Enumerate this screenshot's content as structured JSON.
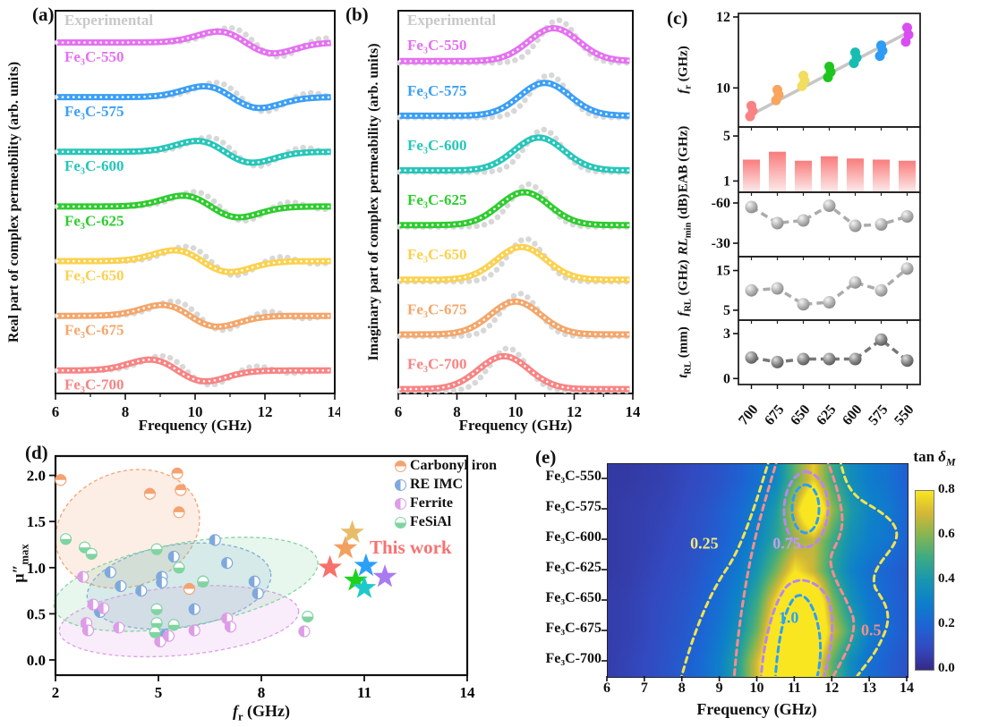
{
  "figure": {
    "panel_labels": {
      "a": "(a)",
      "b": "(b)",
      "c": "(c)",
      "d": "(d)",
      "e": "(e)"
    }
  },
  "chart_data": [
    {
      "id": "a",
      "type": "line",
      "ylabel": "Real part of complex permeability (arb. units)",
      "xlabel": "Frequency (GHz)",
      "xlim": [
        6,
        14
      ],
      "x_ticks": [
        6,
        8,
        10,
        12,
        14
      ],
      "x_minor_ticks": [
        7,
        9,
        11,
        13
      ],
      "experimental_label": "Experimental",
      "experimental_color": "#d8d8d8",
      "samples": [
        {
          "label": "Fe₃C-550",
          "color": "#e570f2",
          "fr": 11.45
        },
        {
          "label": "Fe₃C-575",
          "color": "#3b9ff5",
          "fr": 11.05
        },
        {
          "label": "Fe₃C-600",
          "color": "#26c6b9",
          "fr": 10.85
        },
        {
          "label": "Fe₃C-625",
          "color": "#2ecc2e",
          "fr": 10.45
        },
        {
          "label": "Fe₃C-650",
          "color": "#fbd14e",
          "fr": 10.2
        },
        {
          "label": "Fe₃C-675",
          "color": "#f4a66b",
          "fr": 9.85
        },
        {
          "label": "Fe₃C-700",
          "color": "#f98383",
          "fr": 9.5
        }
      ]
    },
    {
      "id": "b",
      "type": "line",
      "ylabel": "Imaginary part of complex permeability (arb. units)",
      "xlabel": "Frequency (GHz)",
      "xlim": [
        6,
        14
      ],
      "x_ticks": [
        6,
        8,
        10,
        12,
        14
      ],
      "x_minor_ticks": [
        7,
        9,
        11,
        13
      ],
      "experimental_label": "Experimental",
      "experimental_color": "#d8d8d8",
      "samples": [
        {
          "label": "Fe₃C-550",
          "color": "#e570f2",
          "fr": 11.3
        },
        {
          "label": "Fe₃C-575",
          "color": "#3b9ff5",
          "fr": 11.0
        },
        {
          "label": "Fe₃C-600",
          "color": "#26c6b9",
          "fr": 10.8
        },
        {
          "label": "Fe₃C-625",
          "color": "#2ecc2e",
          "fr": 10.3
        },
        {
          "label": "Fe₃C-650",
          "color": "#fbd14e",
          "fr": 10.2
        },
        {
          "label": "Fe₃C-675",
          "color": "#f4a66b",
          "fr": 10.0
        },
        {
          "label": "Fe₃C-700",
          "color": "#f98383",
          "fr": 9.6
        }
      ]
    },
    {
      "id": "c",
      "type": "multi-panel",
      "categories": [
        "700",
        "675",
        "650",
        "625",
        "600",
        "575",
        "550"
      ],
      "category_colors": [
        "#f98383",
        "#f9a55f",
        "#f2dd5e",
        "#1dc51d",
        "#17bdb1",
        "#2d9cf4",
        "#d94ef0"
      ],
      "trend_color": "#c6c6c6",
      "subpanels": [
        {
          "key": "fr",
          "label_parts": {
            "it": "f",
            "sub": "r",
            "post": " (GHz)"
          },
          "ticks": [
            12,
            10
          ],
          "ylim": [
            8.9,
            12.1
          ],
          "type": "scatter-cluster",
          "values": [
            [
              9.2,
              9.35,
              9.5
            ],
            [
              9.65,
              9.8,
              9.95
            ],
            [
              10.05,
              10.2,
              10.35
            ],
            [
              10.3,
              10.45,
              10.6
            ],
            [
              10.7,
              10.85,
              11.0
            ],
            [
              10.9,
              11.05,
              11.2
            ],
            [
              11.3,
              11.5,
              11.7
            ]
          ],
          "trend_line": [
            9.25,
            11.55
          ]
        },
        {
          "key": "eab",
          "label_parts": {
            "pre": "EAB",
            "post": " (GHz)"
          },
          "ticks": [
            5,
            1
          ],
          "ylim": [
            0,
            5.8
          ],
          "type": "bar",
          "bar_color": "#f97c7c",
          "values": [
            2.9,
            3.6,
            2.8,
            3.2,
            3.0,
            2.9,
            2.8
          ]
        },
        {
          "key": "rl_min",
          "label_parts": {
            "it": "RL",
            "sub": "min",
            "post": " (dB)"
          },
          "ticks": [
            -60,
            -30
          ],
          "ylim": [
            -68,
            -20
          ],
          "inverted": true,
          "type": "line-marker",
          "values": [
            -57,
            -45,
            -47,
            -58,
            -43,
            -44,
            -50
          ]
        },
        {
          "key": "f_rl",
          "label_parts": {
            "it": "f",
            "sub": "RL",
            "post": " (GHz)"
          },
          "ticks": [
            15,
            5
          ],
          "ylim": [
            2.5,
            18.5
          ],
          "type": "line-marker",
          "values": [
            10,
            10.5,
            6.5,
            7,
            12,
            10,
            15.5
          ]
        },
        {
          "key": "t_rl",
          "label_parts": {
            "it": "t",
            "sub": "RL",
            "post": " (mm)"
          },
          "ticks": [
            3,
            0
          ],
          "ylim": [
            -0.4,
            3.9
          ],
          "type": "line-marker",
          "dark": true,
          "values": [
            1.4,
            1.1,
            1.3,
            1.3,
            1.3,
            2.6,
            1.2
          ]
        }
      ]
    },
    {
      "id": "d",
      "type": "scatter",
      "xlabel_parts": {
        "it": "f",
        "sub": "r",
        "post": " (GHz)"
      },
      "ylabel_parts": {
        "pre": "μ″",
        "sub": "max"
      },
      "xlim": [
        2,
        14
      ],
      "x_ticks": [
        2,
        5,
        8,
        11,
        14
      ],
      "ylim": [
        0,
        2.25
      ],
      "y_ticks": [
        0.0,
        0.5,
        1.0,
        1.5,
        2.0
      ],
      "groups": [
        {
          "name": "Carbonyl iron",
          "color": "#f5a271",
          "fill_side": "top",
          "region": {
            "cf": 4.1,
            "cmu": 1.42,
            "rf": 2.15,
            "rmu": 0.62,
            "rot": -20
          },
          "points": [
            [
              2.15,
              1.95
            ],
            [
              4.75,
              1.8
            ],
            [
              5.55,
              2.02
            ],
            [
              5.65,
              1.84
            ],
            [
              5.6,
              1.6
            ],
            [
              5.9,
              0.77
            ]
          ]
        },
        {
          "name": "RE IMC",
          "color": "#7fa8dc",
          "fill_side": "left",
          "region": {
            "cf": 5.6,
            "cmu": 0.8,
            "rf": 2.7,
            "rmu": 0.45,
            "rot": -8
          },
          "points": [
            [
              3.6,
              0.95
            ],
            [
              3.9,
              0.8
            ],
            [
              4.5,
              0.75
            ],
            [
              5.1,
              0.9
            ],
            [
              5.1,
              0.84
            ],
            [
              5.45,
              1.12
            ],
            [
              6.05,
              0.55
            ],
            [
              6.3,
              0.85
            ],
            [
              6.65,
              1.3
            ],
            [
              7.0,
              1.05
            ],
            [
              7.8,
              0.85
            ],
            [
              7.9,
              0.72
            ],
            [
              5.2,
              0.27
            ],
            [
              3.3,
              0.52
            ]
          ]
        },
        {
          "name": "Ferrite",
          "color": "#dd9ce8",
          "fill_side": "left",
          "region": {
            "cf": 5.6,
            "cmu": 0.42,
            "rf": 3.5,
            "rmu": 0.37,
            "rot": -5
          },
          "points": [
            [
              2.8,
              0.9
            ],
            [
              2.9,
              0.4
            ],
            [
              2.95,
              0.32
            ],
            [
              3.1,
              0.6
            ],
            [
              3.4,
              0.56
            ],
            [
              3.85,
              0.35
            ],
            [
              5.05,
              0.2
            ],
            [
              5.3,
              0.26
            ],
            [
              6.05,
              0.32
            ],
            [
              7.0,
              0.45
            ],
            [
              7.1,
              0.36
            ],
            [
              9.25,
              0.31
            ]
          ]
        },
        {
          "name": "FeSiAl",
          "color": "#7fd4a0",
          "fill_side": "bottom",
          "region": {
            "cf": 5.8,
            "cmu": 0.82,
            "rf": 3.9,
            "rmu": 0.45,
            "rot": -10
          },
          "points": [
            [
              2.3,
              1.31
            ],
            [
              2.85,
              1.22
            ],
            [
              3.05,
              1.15
            ],
            [
              4.95,
              1.2
            ],
            [
              5.6,
              1.0
            ],
            [
              6.3,
              0.85
            ],
            [
              4.95,
              0.55
            ],
            [
              4.95,
              0.4
            ],
            [
              4.9,
              0.3
            ],
            [
              5.45,
              0.38
            ],
            [
              9.35,
              0.47
            ]
          ]
        }
      ],
      "this_work": {
        "label": "This work",
        "color": "#f87171",
        "stars": [
          {
            "f": 10.0,
            "mu": 1.0,
            "color": "#f8706a"
          },
          {
            "f": 10.45,
            "mu": 1.21,
            "color": "#f2a05f"
          },
          {
            "f": 10.65,
            "mu": 1.38,
            "color": "#e8bd6a"
          },
          {
            "f": 10.75,
            "mu": 0.86,
            "color": "#1ed11e"
          },
          {
            "f": 11.0,
            "mu": 0.78,
            "color": "#1fc9c9"
          },
          {
            "f": 11.05,
            "mu": 1.02,
            "color": "#2ba0f8"
          },
          {
            "f": 11.6,
            "mu": 0.9,
            "color": "#a97af2"
          }
        ]
      }
    },
    {
      "id": "e",
      "type": "heatmap",
      "title_parts": {
        "pre": "tan ",
        "it": "δ",
        "sub": "M"
      },
      "xlabel": "Frequency (GHz)",
      "f_start": 6,
      "f_step": 0.5,
      "x_ticks": [
        6,
        7,
        8,
        9,
        10,
        11,
        12,
        13,
        14
      ],
      "rows": [
        "Fe₃C-550",
        "Fe₃C-575",
        "Fe₃C-600",
        "Fe₃C-625",
        "Fe₃C-650",
        "Fe₃C-675",
        "Fe₃C-700"
      ],
      "values": [
        [
          0.05,
          0.05,
          0.06,
          0.07,
          0.09,
          0.11,
          0.14,
          0.18,
          0.24,
          0.33,
          0.55,
          0.75,
          0.5,
          0.36,
          0.29,
          0.25,
          0.18
        ],
        [
          0.05,
          0.06,
          0.07,
          0.08,
          0.1,
          0.13,
          0.17,
          0.22,
          0.3,
          0.42,
          0.7,
          1.05,
          0.62,
          0.42,
          0.32,
          0.28,
          0.2
        ],
        [
          0.05,
          0.06,
          0.07,
          0.09,
          0.11,
          0.14,
          0.18,
          0.24,
          0.33,
          0.46,
          0.62,
          0.68,
          0.5,
          0.37,
          0.3,
          0.26,
          0.19
        ],
        [
          0.05,
          0.06,
          0.08,
          0.1,
          0.12,
          0.16,
          0.21,
          0.28,
          0.4,
          0.58,
          0.8,
          0.68,
          0.46,
          0.32,
          0.24,
          0.2,
          0.15
        ],
        [
          0.06,
          0.07,
          0.09,
          0.11,
          0.14,
          0.18,
          0.24,
          0.33,
          0.5,
          0.78,
          1.08,
          1.0,
          0.6,
          0.38,
          0.27,
          0.21,
          0.16
        ],
        [
          0.06,
          0.07,
          0.09,
          0.12,
          0.15,
          0.2,
          0.27,
          0.38,
          0.58,
          0.9,
          1.2,
          1.05,
          0.7,
          0.48,
          0.3,
          0.22,
          0.16
        ],
        [
          0.06,
          0.08,
          0.1,
          0.13,
          0.17,
          0.22,
          0.31,
          0.46,
          0.72,
          1.02,
          1.1,
          0.85,
          0.55,
          0.35,
          0.24,
          0.18,
          0.13
        ]
      ],
      "colorbar": {
        "ticks": [
          0.8,
          0.6,
          0.4,
          0.2,
          0.0
        ],
        "min": 0,
        "max": 0.8
      },
      "contours": [
        {
          "level": 0.25,
          "color": "#f2e24e"
        },
        {
          "level": 0.5,
          "color": "#f98c8c"
        },
        {
          "level": 0.75,
          "color": "#b787f0"
        },
        {
          "level": 1.0,
          "color": "#2b9ff7"
        }
      ],
      "contour_labels": [
        {
          "text": "0.25",
          "color": "#f0e87e",
          "f": 8.6,
          "row": 2.65
        },
        {
          "text": "0.75",
          "color": "#c49bf5",
          "f": 10.8,
          "row": 2.65
        },
        {
          "text": "1.0",
          "color": "#2ba3f7",
          "f": 10.85,
          "row": 5.1
        },
        {
          "text": "0.5",
          "color": "#f98c8c",
          "f": 13.05,
          "row": 5.5
        }
      ]
    }
  ]
}
